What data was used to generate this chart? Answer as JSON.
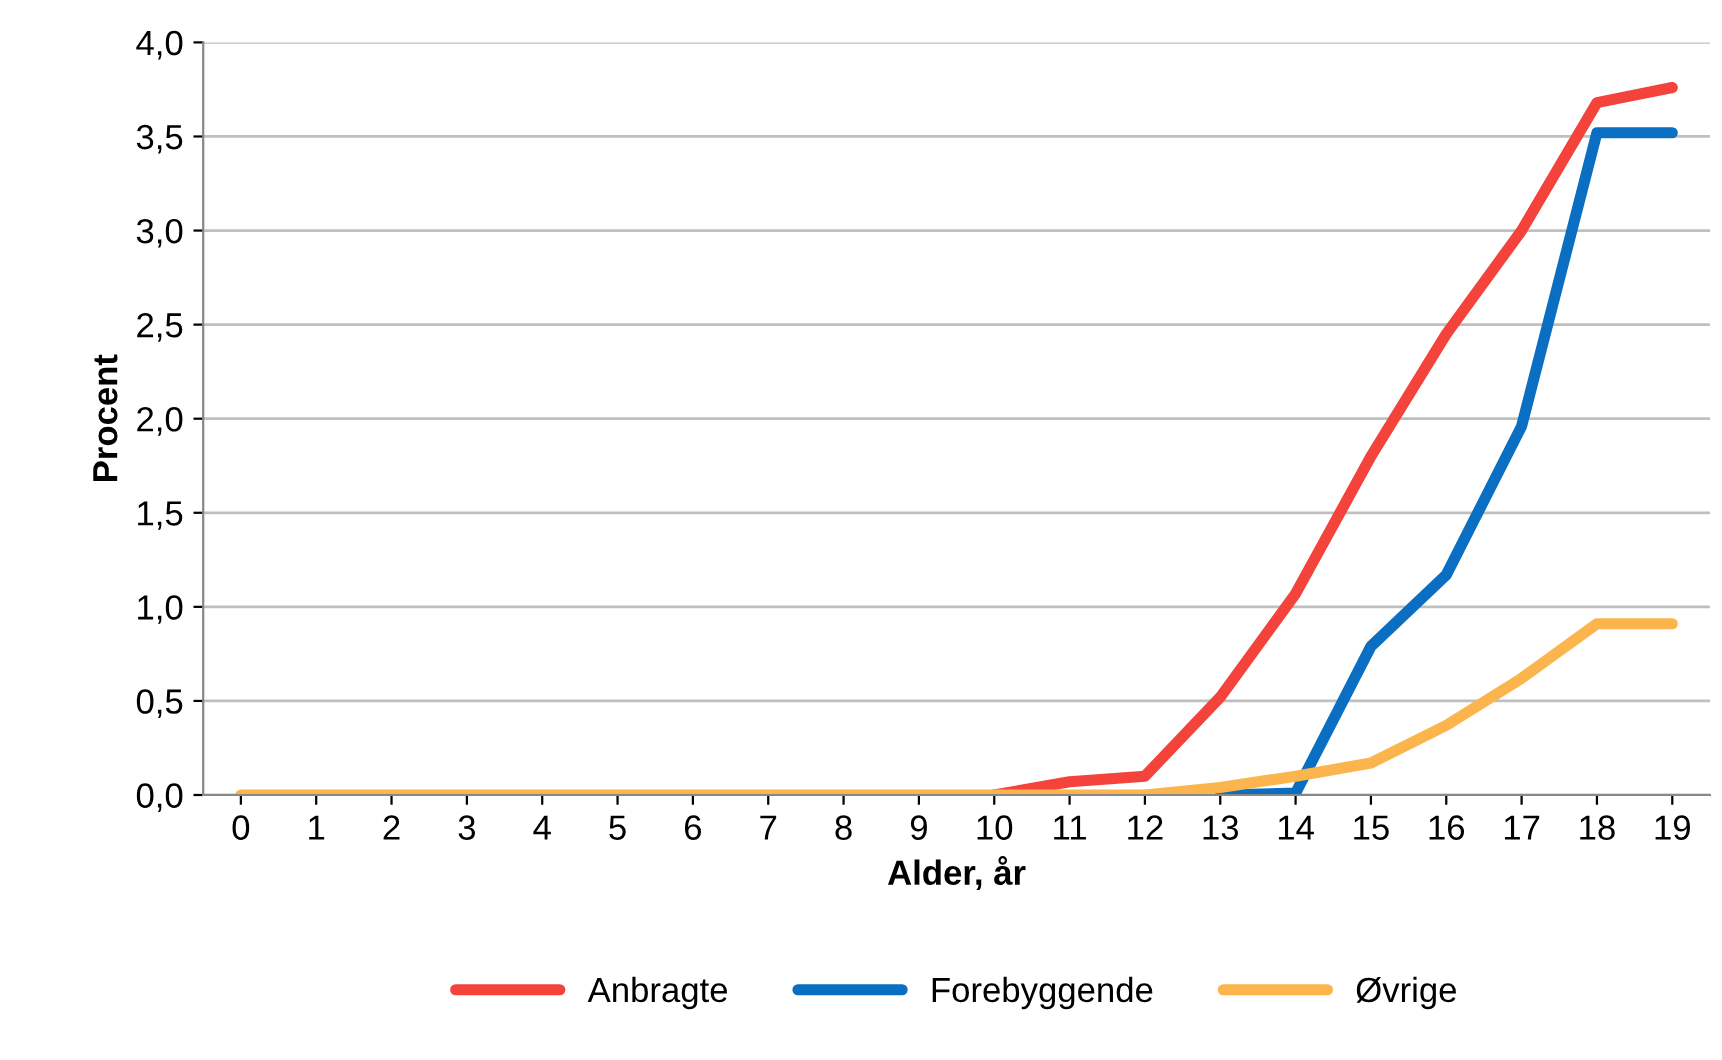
{
  "chart_data": {
    "type": "line",
    "xlabel": "Alder, år",
    "ylabel": "Procent",
    "categories": [
      "0",
      "1",
      "2",
      "3",
      "4",
      "5",
      "6",
      "7",
      "8",
      "9",
      "10",
      "11",
      "12",
      "13",
      "14",
      "15",
      "16",
      "17",
      "18",
      "19"
    ],
    "series": [
      {
        "name": "Anbragte",
        "color": "#f4433b",
        "values": [
          null,
          null,
          null,
          null,
          null,
          null,
          null,
          null,
          null,
          null,
          0,
          0.07,
          0.1,
          0.52,
          1.07,
          1.8,
          2.45,
          3.0,
          3.68,
          3.76
        ]
      },
      {
        "name": "Forebyggende",
        "color": "#0a6fc2",
        "values": [
          null,
          null,
          null,
          null,
          null,
          null,
          null,
          null,
          null,
          null,
          null,
          null,
          null,
          0,
          0.01,
          0.79,
          1.17,
          1.96,
          3.52,
          3.52
        ]
      },
      {
        "name": "Øvrige",
        "color": "#fbb54c",
        "values": [
          0,
          0,
          0,
          0,
          0,
          0,
          0,
          0,
          0,
          0,
          0,
          0,
          0,
          0.04,
          0.1,
          0.17,
          0.37,
          0.62,
          0.91,
          0.91
        ]
      }
    ],
    "ylim": [
      0,
      4
    ],
    "yticks": [
      {
        "value": 0,
        "label": "0,0"
      },
      {
        "value": 0.5,
        "label": "0,5"
      },
      {
        "value": 1,
        "label": "1,0"
      },
      {
        "value": 1.5,
        "label": "1,5"
      },
      {
        "value": 2,
        "label": "2,0"
      },
      {
        "value": 2.5,
        "label": "2,5"
      },
      {
        "value": 3,
        "label": "3,0"
      },
      {
        "value": 3.5,
        "label": "3,5"
      },
      {
        "value": 4,
        "label": "4,0"
      }
    ],
    "grid": "y",
    "legend": "bottom",
    "marker": "none",
    "line_style": "solid"
  }
}
